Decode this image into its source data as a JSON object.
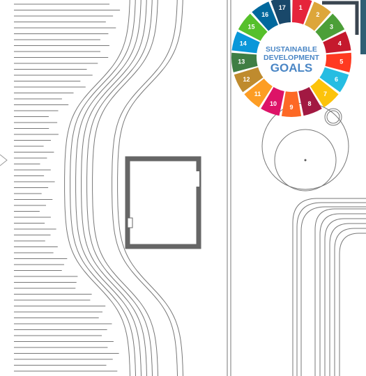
{
  "logo": {
    "title_lines": [
      "SUSTAINABLE",
      "DEVELOPMENT",
      "GOALS"
    ],
    "goals": [
      "1",
      "2",
      "3",
      "4",
      "5",
      "6",
      "7",
      "8",
      "9",
      "10",
      "11",
      "12",
      "13",
      "14",
      "15",
      "16",
      "17"
    ]
  }
}
